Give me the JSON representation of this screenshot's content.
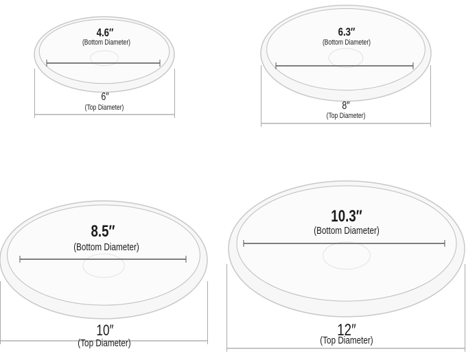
{
  "saucers": [
    {
      "bottom_value": "4.6″",
      "bottom_label": "(Bottom Diameter)",
      "top_value": "6″",
      "top_label": "(Top Diameter)"
    },
    {
      "bottom_value": "6.3″",
      "bottom_label": "(Bottom Diameter)",
      "top_value": "8″",
      "top_label": "(Top Diameter)"
    },
    {
      "bottom_value": "8.5″",
      "bottom_label": "(Bottom Diameter)",
      "top_value": "10″",
      "top_label": "(Top Diameter)"
    },
    {
      "bottom_value": "10.3″",
      "bottom_label": "(Bottom Diameter)",
      "top_value": "12″",
      "top_label": "(Top Diameter)"
    }
  ],
  "colors": {
    "line": "#555555",
    "rim": "#c8c8c8",
    "fill": "#f7f7f7"
  }
}
